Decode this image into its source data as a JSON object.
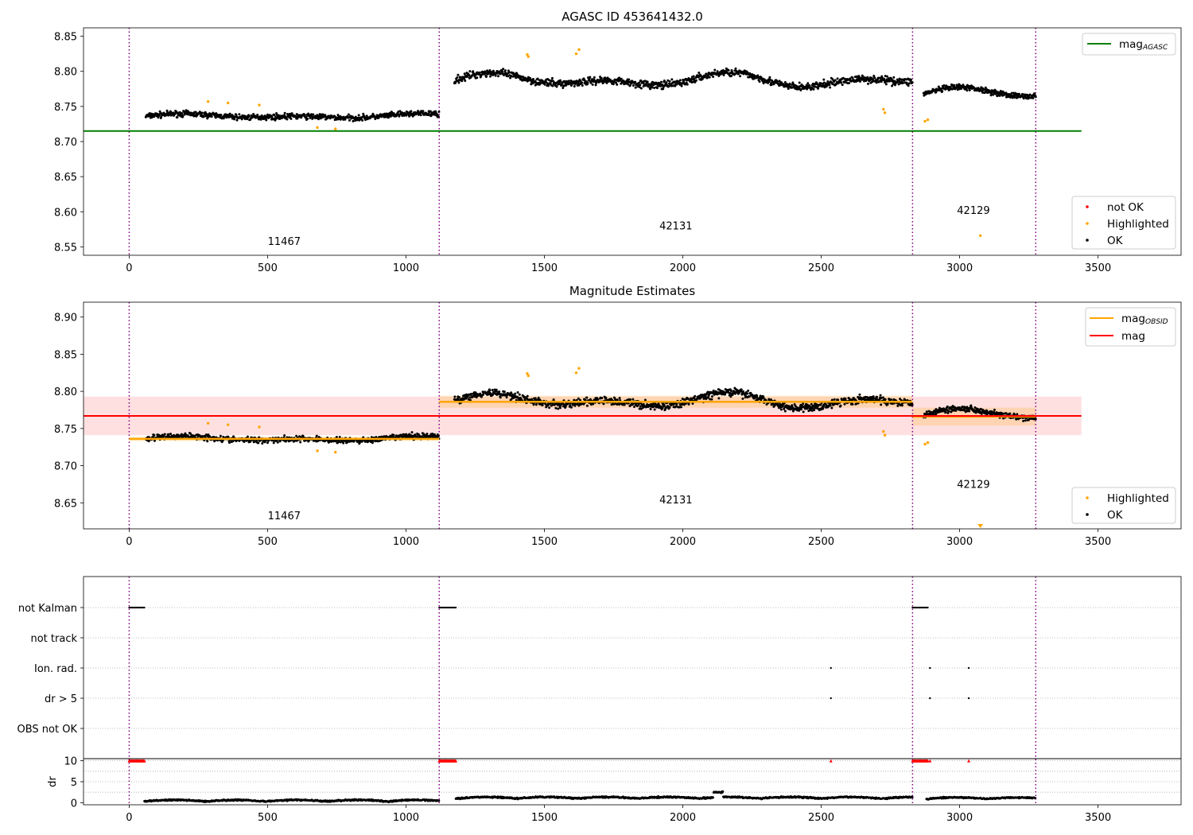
{
  "chart_data": [
    {
      "type": "scatter",
      "title": "AGASC ID 453641432.0",
      "xlim": [
        -165,
        3800
      ],
      "ylim": [
        8.538,
        8.862
      ],
      "xticks": [
        0,
        500,
        1000,
        1500,
        2000,
        2500,
        3000,
        3500
      ],
      "yticks": [
        8.55,
        8.6,
        8.65,
        8.7,
        8.75,
        8.8,
        8.85
      ],
      "observation_boundaries": [
        0,
        1120,
        2830,
        3275
      ],
      "obsid_labels": [
        {
          "text": "11467",
          "x": 560,
          "y": 8.553
        },
        {
          "text": "42131",
          "x": 1975,
          "y": 8.575
        },
        {
          "text": "42129",
          "x": 3050,
          "y": 8.597
        }
      ],
      "lines": [
        {
          "name": "mag_AGASC",
          "color": "#008000",
          "x": [
            -165,
            3440
          ],
          "y": [
            8.715,
            8.715
          ]
        }
      ],
      "segments": [
        {
          "x": [
            60,
            1120
          ],
          "base": 8.736,
          "amp": 0.004,
          "noise": 0.006
        },
        {
          "x": [
            1175,
            2830
          ],
          "base": 8.787,
          "amp": 0.012,
          "noise": 0.008
        },
        {
          "x": [
            2870,
            3275
          ],
          "base": 8.768,
          "amp": 0.01,
          "noise": 0.006
        }
      ],
      "highlighted_points": [
        {
          "x": 285,
          "y": 8.757
        },
        {
          "x": 357,
          "y": 8.755
        },
        {
          "x": 470,
          "y": 8.752
        },
        {
          "x": 680,
          "y": 8.72
        },
        {
          "x": 745,
          "y": 8.718
        },
        {
          "x": 1438,
          "y": 8.824
        },
        {
          "x": 1442,
          "y": 8.821
        },
        {
          "x": 1615,
          "y": 8.825
        },
        {
          "x": 1625,
          "y": 8.831
        },
        {
          "x": 2725,
          "y": 8.746
        },
        {
          "x": 2730,
          "y": 8.741
        },
        {
          "x": 2875,
          "y": 8.729
        },
        {
          "x": 2885,
          "y": 8.731
        },
        {
          "x": 3075,
          "y": 8.566
        }
      ],
      "legend_top": [
        {
          "label": "mag",
          "sub": "AGASC",
          "color": "#008000"
        }
      ],
      "legend_bottom": [
        {
          "label": "not OK",
          "color": "#ff0000"
        },
        {
          "label": "Highlighted",
          "color": "#ffa500"
        },
        {
          "label": "OK",
          "color": "#000000"
        }
      ]
    },
    {
      "type": "scatter",
      "title": "Magnitude Estimates",
      "xlim": [
        -165,
        3800
      ],
      "ylim": [
        8.615,
        8.92
      ],
      "xticks": [
        0,
        500,
        1000,
        1500,
        2000,
        2500,
        3000,
        3500
      ],
      "yticks": [
        8.65,
        8.7,
        8.75,
        8.8,
        8.85,
        8.9
      ],
      "observation_boundaries": [
        0,
        1120,
        2830,
        3275
      ],
      "obsid_labels": [
        {
          "text": "11467",
          "x": 560,
          "y": 8.628
        },
        {
          "text": "42131",
          "x": 1975,
          "y": 8.649
        },
        {
          "text": "42129",
          "x": 3050,
          "y": 8.67
        }
      ],
      "mag": {
        "value": 8.767,
        "band": [
          8.741,
          8.793
        ],
        "x": [
          -165,
          3440
        ],
        "color": "#ff0000"
      },
      "mag_obsid": [
        {
          "x": [
            0,
            1120
          ],
          "value": 8.736,
          "band": [
            8.733,
            8.739
          ]
        },
        {
          "x": [
            1120,
            2830
          ],
          "value": 8.786,
          "band": [
            8.778,
            8.794
          ]
        },
        {
          "x": [
            2830,
            3275
          ],
          "value": 8.766,
          "band": [
            8.754,
            8.778
          ]
        }
      ],
      "highlighted_points": [
        {
          "x": 285,
          "y": 8.757
        },
        {
          "x": 357,
          "y": 8.755
        },
        {
          "x": 470,
          "y": 8.752
        },
        {
          "x": 680,
          "y": 8.72
        },
        {
          "x": 745,
          "y": 8.718
        },
        {
          "x": 1438,
          "y": 8.824
        },
        {
          "x": 1442,
          "y": 8.821
        },
        {
          "x": 1615,
          "y": 8.825
        },
        {
          "x": 1625,
          "y": 8.831
        },
        {
          "x": 2725,
          "y": 8.746
        },
        {
          "x": 2730,
          "y": 8.741
        },
        {
          "x": 2875,
          "y": 8.729
        },
        {
          "x": 2885,
          "y": 8.731
        }
      ],
      "offscale_marker": {
        "x": 3075,
        "color": "#ffa500"
      },
      "legend_top": [
        {
          "label": "mag",
          "sub": "OBSID",
          "color": "#ffa500"
        },
        {
          "label": "mag",
          "sub": "",
          "color": "#ff0000"
        }
      ],
      "legend_bottom": [
        {
          "label": "Highlighted",
          "color": "#ffa500"
        },
        {
          "label": "OK",
          "color": "#000000"
        }
      ]
    },
    {
      "type": "scatter",
      "title": "",
      "xlim": [
        -165,
        3800
      ],
      "xticks": [
        0,
        500,
        1000,
        1500,
        2000,
        2500,
        3000,
        3500
      ],
      "observation_boundaries": [
        0,
        1120,
        2830,
        3275
      ],
      "flag_rows": [
        "not Kalman",
        "not track",
        "Ion. rad.",
        "dr > 5",
        "OBS not OK"
      ],
      "flag_points": {
        "not Kalman": [
          [
            0,
            55
          ],
          [
            1120,
            1180
          ],
          [
            2830,
            2885
          ]
        ],
        "Ion. rad.": [
          2535,
          2893,
          3033
        ],
        "dr > 5": [
          2535,
          2893,
          3033
        ]
      },
      "dr": {
        "ylabel": "dr",
        "yticks": [
          0,
          5,
          10
        ],
        "ylim": [
          -0.5,
          10.5
        ],
        "clipped_points_red": [
          [
            0,
            55
          ],
          [
            1120,
            1180
          ],
          [
            2830,
            2885
          ],
          2535,
          2893,
          3033
        ],
        "segments": [
          {
            "x": [
              55,
              1120
            ],
            "base": 0.3
          },
          {
            "x": [
              1180,
              2830
            ],
            "base": 1.0
          },
          {
            "x": [
              2880,
              3275
            ],
            "base": 0.9
          }
        ]
      }
    }
  ]
}
